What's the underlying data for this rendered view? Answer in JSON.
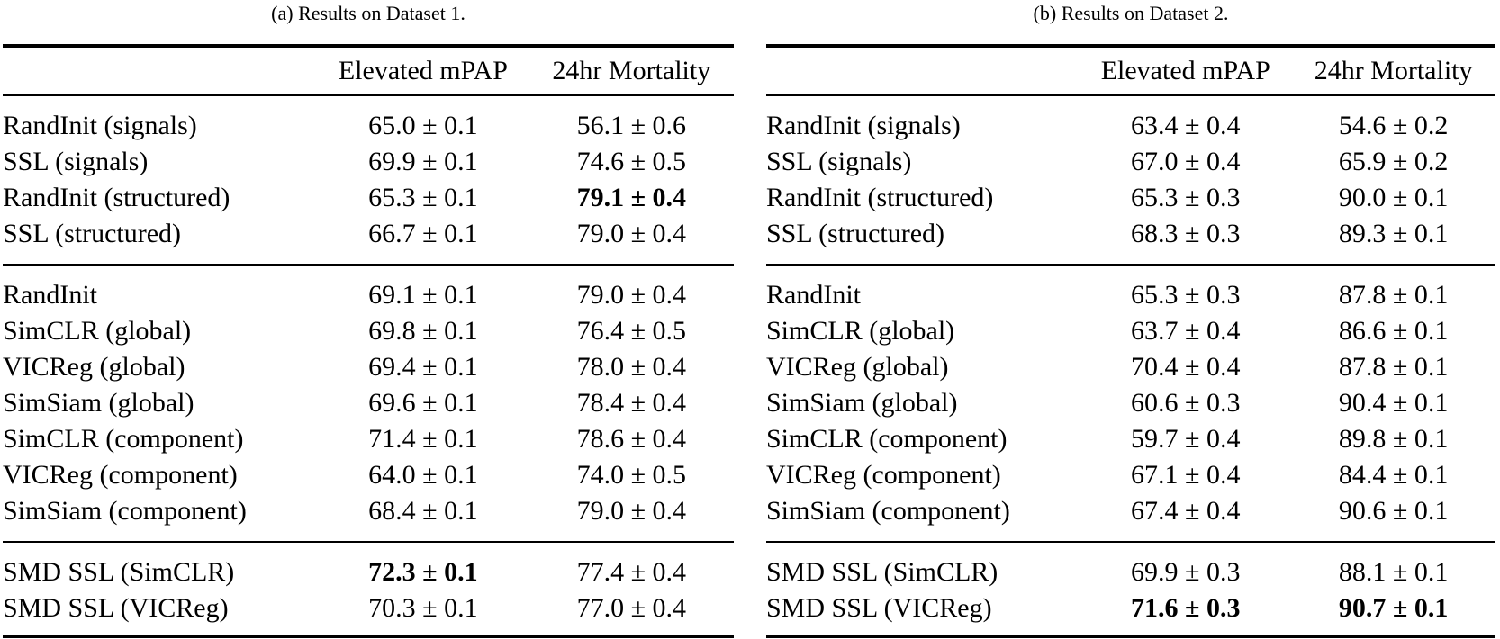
{
  "colors": {
    "background": "#ffffff",
    "text": "#000000",
    "rule": "#000000"
  },
  "tables": [
    {
      "id": "a",
      "caption": "(a) Results on Dataset 1.",
      "columns": [
        "",
        "Elevated mPAP",
        "24hr Mortality"
      ],
      "sections": [
        {
          "rows": [
            {
              "method": "RandInit (signals)",
              "values": [
                {
                  "text": "65.0 ± 0.1",
                  "bold": false
                },
                {
                  "text": "56.1 ± 0.6",
                  "bold": false
                }
              ]
            },
            {
              "method": "SSL (signals)",
              "values": [
                {
                  "text": "69.9 ± 0.1",
                  "bold": false
                },
                {
                  "text": "74.6 ± 0.5",
                  "bold": false
                }
              ]
            },
            {
              "method": "RandInit (structured)",
              "values": [
                {
                  "text": "65.3 ± 0.1",
                  "bold": false
                },
                {
                  "text": "79.1 ± 0.4",
                  "bold": true
                }
              ]
            },
            {
              "method": "SSL (structured)",
              "values": [
                {
                  "text": "66.7 ± 0.1",
                  "bold": false
                },
                {
                  "text": "79.0 ± 0.4",
                  "bold": false
                }
              ]
            }
          ]
        },
        {
          "rows": [
            {
              "method": "RandInit",
              "values": [
                {
                  "text": "69.1 ± 0.1",
                  "bold": false
                },
                {
                  "text": "79.0 ± 0.4",
                  "bold": false
                }
              ]
            },
            {
              "method": "SimCLR (global)",
              "values": [
                {
                  "text": "69.8 ± 0.1",
                  "bold": false
                },
                {
                  "text": "76.4 ± 0.5",
                  "bold": false
                }
              ]
            },
            {
              "method": "VICReg (global)",
              "values": [
                {
                  "text": "69.4 ± 0.1",
                  "bold": false
                },
                {
                  "text": "78.0 ± 0.4",
                  "bold": false
                }
              ]
            },
            {
              "method": "SimSiam (global)",
              "values": [
                {
                  "text": "69.6 ± 0.1",
                  "bold": false
                },
                {
                  "text": "78.4 ± 0.4",
                  "bold": false
                }
              ]
            },
            {
              "method": "SimCLR (component)",
              "values": [
                {
                  "text": "71.4 ± 0.1",
                  "bold": false
                },
                {
                  "text": "78.6 ± 0.4",
                  "bold": false
                }
              ]
            },
            {
              "method": "VICReg (component)",
              "values": [
                {
                  "text": "64.0 ± 0.1",
                  "bold": false
                },
                {
                  "text": "74.0 ± 0.5",
                  "bold": false
                }
              ]
            },
            {
              "method": "SimSiam (component)",
              "values": [
                {
                  "text": "68.4 ± 0.1",
                  "bold": false
                },
                {
                  "text": "79.0 ± 0.4",
                  "bold": false
                }
              ]
            }
          ]
        },
        {
          "rows": [
            {
              "method": "SMD SSL (SimCLR)",
              "values": [
                {
                  "text": "72.3 ± 0.1",
                  "bold": true
                },
                {
                  "text": "77.4 ± 0.4",
                  "bold": false
                }
              ]
            },
            {
              "method": "SMD SSL (VICReg)",
              "values": [
                {
                  "text": "70.3 ± 0.1",
                  "bold": false
                },
                {
                  "text": "77.0 ± 0.4",
                  "bold": false
                }
              ]
            }
          ]
        }
      ]
    },
    {
      "id": "b",
      "caption": "(b) Results on Dataset 2.",
      "columns": [
        "",
        "Elevated mPAP",
        "24hr Mortality"
      ],
      "sections": [
        {
          "rows": [
            {
              "method": "RandInit (signals)",
              "values": [
                {
                  "text": "63.4 ± 0.4",
                  "bold": false
                },
                {
                  "text": "54.6 ± 0.2",
                  "bold": false
                }
              ]
            },
            {
              "method": "SSL (signals)",
              "values": [
                {
                  "text": "67.0 ± 0.4",
                  "bold": false
                },
                {
                  "text": "65.9 ± 0.2",
                  "bold": false
                }
              ]
            },
            {
              "method": "RandInit (structured)",
              "values": [
                {
                  "text": "65.3 ± 0.3",
                  "bold": false
                },
                {
                  "text": "90.0 ± 0.1",
                  "bold": false
                }
              ]
            },
            {
              "method": "SSL (structured)",
              "values": [
                {
                  "text": "68.3 ± 0.3",
                  "bold": false
                },
                {
                  "text": "89.3 ± 0.1",
                  "bold": false
                }
              ]
            }
          ]
        },
        {
          "rows": [
            {
              "method": "RandInit",
              "values": [
                {
                  "text": "65.3 ± 0.3",
                  "bold": false
                },
                {
                  "text": "87.8 ± 0.1",
                  "bold": false
                }
              ]
            },
            {
              "method": "SimCLR (global)",
              "values": [
                {
                  "text": "63.7 ± 0.4",
                  "bold": false
                },
                {
                  "text": "86.6 ± 0.1",
                  "bold": false
                }
              ]
            },
            {
              "method": "VICReg (global)",
              "values": [
                {
                  "text": "70.4 ± 0.4",
                  "bold": false
                },
                {
                  "text": "87.8 ± 0.1",
                  "bold": false
                }
              ]
            },
            {
              "method": "SimSiam (global)",
              "values": [
                {
                  "text": "60.6 ± 0.3",
                  "bold": false
                },
                {
                  "text": "90.4 ± 0.1",
                  "bold": false
                }
              ]
            },
            {
              "method": "SimCLR (component)",
              "values": [
                {
                  "text": "59.7 ± 0.4",
                  "bold": false
                },
                {
                  "text": "89.8 ± 0.1",
                  "bold": false
                }
              ]
            },
            {
              "method": "VICReg (component)",
              "values": [
                {
                  "text": "67.1 ± 0.4",
                  "bold": false
                },
                {
                  "text": "84.4 ± 0.1",
                  "bold": false
                }
              ]
            },
            {
              "method": "SimSiam (component)",
              "values": [
                {
                  "text": "67.4 ± 0.4",
                  "bold": false
                },
                {
                  "text": "90.6 ± 0.1",
                  "bold": false
                }
              ]
            }
          ]
        },
        {
          "rows": [
            {
              "method": "SMD SSL (SimCLR)",
              "values": [
                {
                  "text": "69.9 ± 0.3",
                  "bold": false
                },
                {
                  "text": "88.1 ± 0.1",
                  "bold": false
                }
              ]
            },
            {
              "method": "SMD SSL (VICReg)",
              "values": [
                {
                  "text": "71.6 ± 0.3",
                  "bold": true
                },
                {
                  "text": "90.7 ± 0.1",
                  "bold": true
                }
              ]
            }
          ]
        }
      ]
    }
  ]
}
